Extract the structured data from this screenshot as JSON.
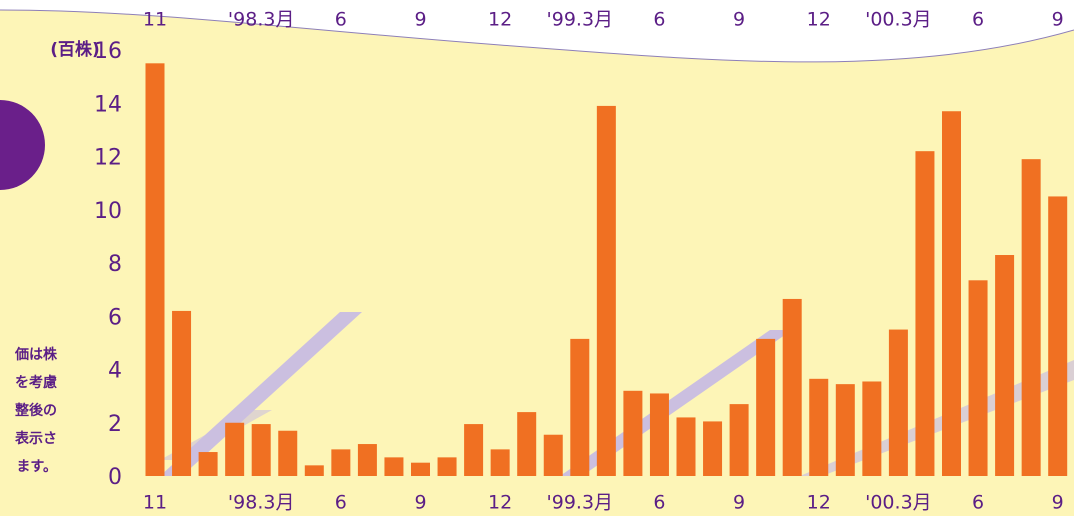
{
  "chart_data": {
    "type": "bar",
    "y_label": "(百株)",
    "notes": [
      "価は株",
      "を考慮",
      "整後の",
      "表示さ",
      "ます。"
    ],
    "categories": [
      "11",
      null,
      null,
      null,
      "'98.3月",
      null,
      null,
      "6",
      null,
      null,
      "9",
      null,
      null,
      "12",
      null,
      null,
      "'99.3月",
      null,
      null,
      "6",
      null,
      null,
      "9",
      null,
      null,
      "12",
      null,
      null,
      "'00.3月",
      null,
      null,
      "6",
      null,
      null,
      "9"
    ],
    "values": [
      15.5,
      6.2,
      0.9,
      2.0,
      1.95,
      1.7,
      0.4,
      1.0,
      1.2,
      0.7,
      0.5,
      0.7,
      1.95,
      1.0,
      2.4,
      1.55,
      5.15,
      13.9,
      3.2,
      3.1,
      2.2,
      2.05,
      2.7,
      5.15,
      6.65,
      3.65,
      3.45,
      3.55,
      5.5,
      12.2,
      13.7,
      7.35,
      8.3,
      11.9,
      10.5
    ],
    "color": "#f07022",
    "ylim": [
      0,
      16
    ],
    "yticks": [
      0,
      2,
      4,
      6,
      8,
      10,
      12,
      14,
      16
    ]
  }
}
